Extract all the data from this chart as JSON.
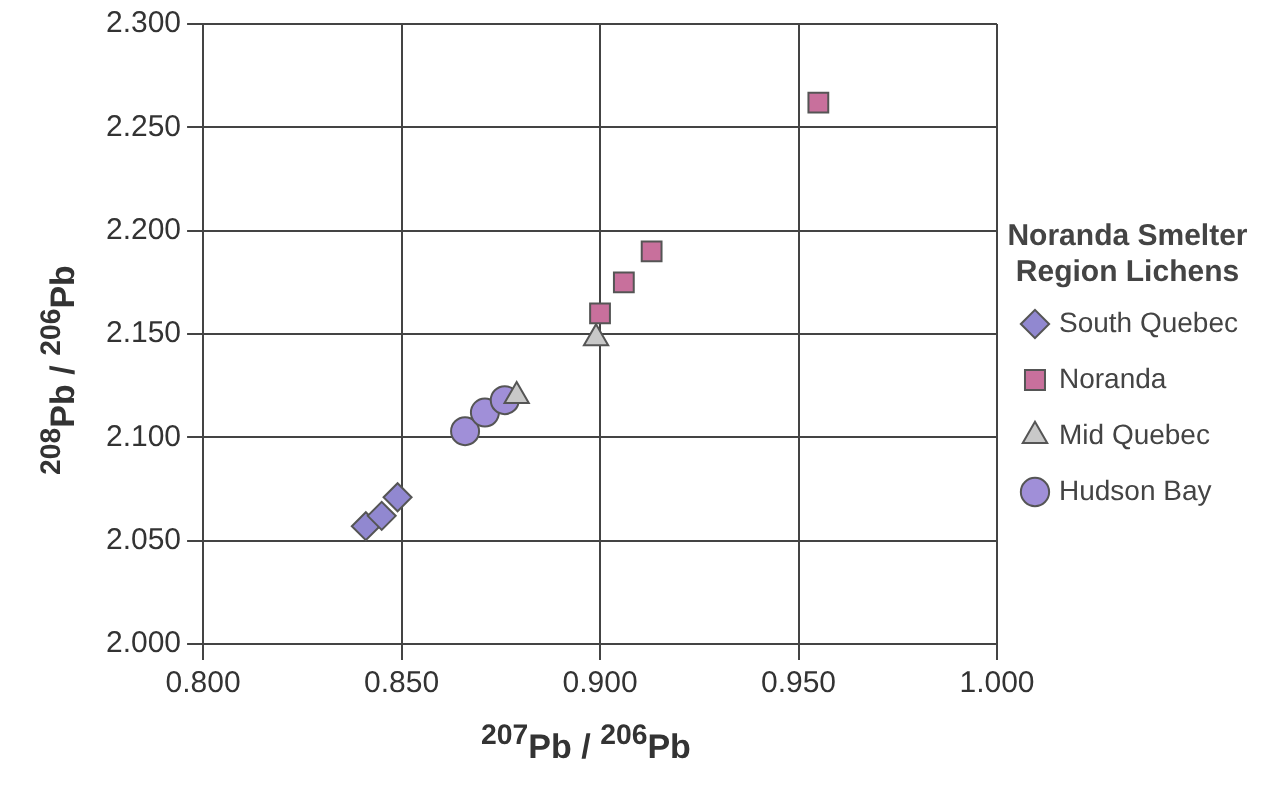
{
  "chart_data": {
    "type": "scatter",
    "xlabel": "$^{207}$Pb / $^{206}$Pb",
    "ylabel": "$^{208}$Pb / $^{206}$Pb",
    "legend_title": "Noranda Smelter Region Lichens",
    "legend": "right",
    "grid": true,
    "xlim": [
      0.8,
      1.0
    ],
    "xticks": [
      {
        "value": 0.8,
        "label": "0.800"
      },
      {
        "value": 0.85,
        "label": "0.850"
      },
      {
        "value": 0.9,
        "label": "0.900"
      },
      {
        "value": 0.95,
        "label": "0.950"
      },
      {
        "value": 1.0,
        "label": "1.000"
      }
    ],
    "ylim": [
      2.0,
      2.3
    ],
    "yticks": [
      {
        "value": 2.0,
        "label": "2.000"
      },
      {
        "value": 2.05,
        "label": "2.050"
      },
      {
        "value": 2.1,
        "label": "2.100"
      },
      {
        "value": 2.15,
        "label": "2.150"
      },
      {
        "value": 2.2,
        "label": "2.200"
      },
      {
        "value": 2.25,
        "label": "2.250"
      },
      {
        "value": 2.3,
        "label": "2.300"
      }
    ],
    "series": [
      {
        "name": "South Quebec",
        "color": "#9188d0",
        "marker": "diamond",
        "x": [
          0.841,
          0.845,
          0.849
        ],
        "values": [
          2.057,
          2.062,
          2.071
        ]
      },
      {
        "name": "Noranda",
        "color": "#c8709c",
        "marker": "square",
        "x": [
          0.9,
          0.906,
          0.913,
          0.955
        ],
        "values": [
          2.16,
          2.175,
          2.19,
          2.262
        ]
      },
      {
        "name": "Mid Quebec",
        "color": "#c8c8c8",
        "marker": "triangle",
        "x": [
          0.899,
          0.879
        ],
        "values": [
          2.148,
          2.12
        ]
      },
      {
        "name": "Hudson Bay",
        "color": "#a08fd8",
        "marker": "circle",
        "x": [
          0.866,
          0.871,
          0.876
        ],
        "values": [
          2.103,
          2.112,
          2.118
        ]
      }
    ]
  }
}
